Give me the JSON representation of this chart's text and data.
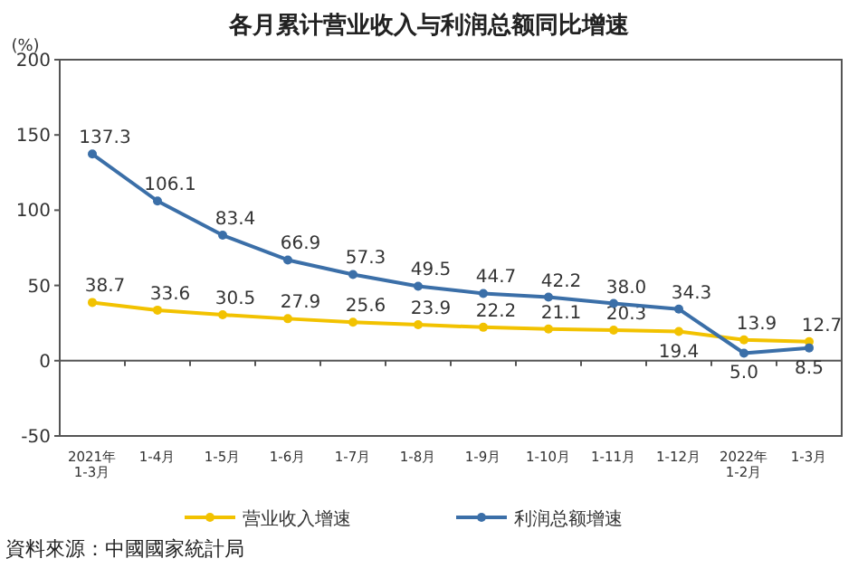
{
  "chart_data": {
    "type": "line",
    "title": "各月累计营业收入与利润总额同比增速",
    "ylabel": "(%)",
    "categories": [
      "2021年\n1-3月",
      "1-4月",
      "1-5月",
      "1-6月",
      "1-7月",
      "1-8月",
      "1-9月",
      "1-10月",
      "1-11月",
      "1-12月",
      "2022年\n1-2月",
      "1-3月"
    ],
    "series": [
      {
        "name": "营业收入增速",
        "color": "#f2c200",
        "values": [
          38.7,
          33.6,
          30.5,
          27.9,
          25.6,
          23.9,
          22.2,
          21.1,
          20.3,
          19.4,
          13.9,
          12.7
        ],
        "value_labels": [
          "38.7",
          "33.6",
          "30.5",
          "27.9",
          "25.6",
          "23.9",
          "22.2",
          "21.1",
          "20.3",
          "19.4",
          "13.9",
          "12.7"
        ]
      },
      {
        "name": "利润总额增速",
        "color": "#3b6fa8",
        "values": [
          137.3,
          106.1,
          83.4,
          66.9,
          57.3,
          49.5,
          44.7,
          42.2,
          38.0,
          34.3,
          5.0,
          8.5
        ],
        "value_labels": [
          "137.3",
          "106.1",
          "83.4",
          "66.9",
          "57.3",
          "49.5",
          "44.7",
          "42.2",
          "38.0",
          "34.3",
          "5.0",
          "8.5"
        ]
      }
    ],
    "ylim": [
      -50,
      200
    ],
    "yticks": [
      -50,
      0,
      50,
      100,
      150,
      200
    ],
    "marker": "circle",
    "legend": "bottom",
    "annotations": [
      "資料來源：中國國家統計局"
    ]
  }
}
